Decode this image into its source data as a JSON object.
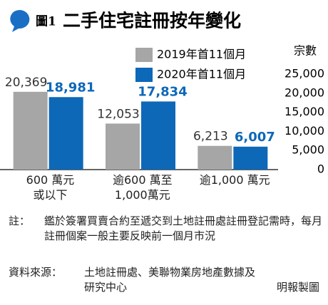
{
  "chart_data": {
    "type": "bar",
    "figure_label": "圖1",
    "title": "二手住宅註冊按年變化",
    "y_label": "宗數",
    "categories": [
      "600 萬元\n或以下",
      "逾600 萬至\n1,000萬元",
      "逾1,000 萬元"
    ],
    "series": [
      {
        "name": "2019年首11個月",
        "color": "#a6a6a6",
        "values": [
          20369,
          12053,
          6213
        ],
        "value_labels": [
          "20,369",
          "12,053",
          "6,213"
        ]
      },
      {
        "name": "2020年首11個月",
        "color": "#0d68b8",
        "values": [
          18981,
          17834,
          6007
        ],
        "value_labels": [
          "18,981",
          "17,834",
          "6,007"
        ]
      }
    ],
    "ylim": [
      0,
      25000
    ],
    "yticks": [
      0,
      {
        "value": 5000,
        "label": "5,000"
      },
      {
        "value": 10000,
        "label": "10,000"
      },
      {
        "value": 15000,
        "label": "15,000"
      },
      {
        "value": 20000,
        "label": "20,000"
      },
      {
        "value": 25000,
        "label": "25,000"
      }
    ],
    "grid": false,
    "legend": "top-right",
    "note_label": "註：",
    "note": "鑑於簽署買賣合約至遞交到土地註冊處註冊登記需時，每月註冊個案一般主要反映前一個月市況",
    "source_label": "資料來源：",
    "source": "土地註冊處、美聯物業房地產數據及研究中心",
    "credit": "明報製圖"
  }
}
